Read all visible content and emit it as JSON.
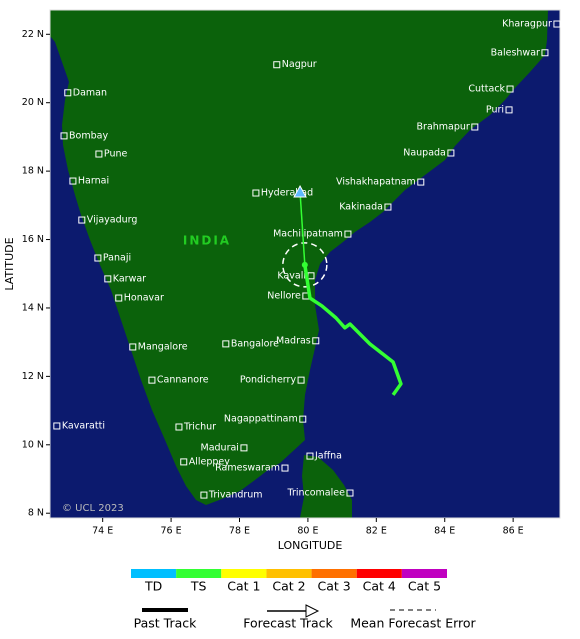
{
  "map": {
    "x_axis_label": "LONGITUDE",
    "y_axis_label": "LATITUDE",
    "region_label": "INDIA",
    "copyright": "© UCL 2023",
    "xlim": [
      72.46,
      87.37
    ],
    "ylim": [
      7.86,
      22.71
    ],
    "xticks": [
      {
        "value": 74,
        "label": "74 E"
      },
      {
        "value": 76,
        "label": "76 E"
      },
      {
        "value": 78,
        "label": "78 E"
      },
      {
        "value": 80,
        "label": "80 E"
      },
      {
        "value": 82,
        "label": "82 E"
      },
      {
        "value": 84,
        "label": "84 E"
      },
      {
        "value": 86,
        "label": "86 E"
      }
    ],
    "yticks": [
      {
        "value": 8,
        "label": "8 N"
      },
      {
        "value": 10,
        "label": "10 N"
      },
      {
        "value": 12,
        "label": "12 N"
      },
      {
        "value": 14,
        "label": "14 N"
      },
      {
        "value": 16,
        "label": "16 N"
      },
      {
        "value": 18,
        "label": "18 N"
      },
      {
        "value": 20,
        "label": "20 N"
      },
      {
        "value": 22,
        "label": "22 N"
      }
    ],
    "cities": [
      {
        "name": "Kharagpur",
        "lon": 87.28,
        "lat": 22.3,
        "label_side": "left"
      },
      {
        "name": "Baleshwar",
        "lon": 86.93,
        "lat": 21.46,
        "label_side": "left"
      },
      {
        "name": "Cuttack",
        "lon": 85.91,
        "lat": 20.4,
        "label_side": "left"
      },
      {
        "name": "Puri",
        "lon": 85.88,
        "lat": 19.79,
        "label_side": "left"
      },
      {
        "name": "Brahmapur",
        "lon": 84.88,
        "lat": 19.29,
        "label_side": "left"
      },
      {
        "name": "Naupada",
        "lon": 84.18,
        "lat": 18.53,
        "label_side": "left"
      },
      {
        "name": "Vishakhapatnam",
        "lon": 83.3,
        "lat": 17.68,
        "label_side": "left"
      },
      {
        "name": "Kakinada",
        "lon": 82.34,
        "lat": 16.95,
        "label_side": "left"
      },
      {
        "name": "Machilipatnam",
        "lon": 81.17,
        "lat": 16.16,
        "label_side": "left"
      },
      {
        "name": "Kavali",
        "lon": 80.09,
        "lat": 14.94,
        "label_side": "left"
      },
      {
        "name": "Nellore",
        "lon": 79.94,
        "lat": 14.35,
        "label_side": "left"
      },
      {
        "name": "Madras",
        "lon": 80.23,
        "lat": 13.04,
        "label_side": "left"
      },
      {
        "name": "Pondicherry",
        "lon": 79.8,
        "lat": 11.89,
        "label_side": "left"
      },
      {
        "name": "Nagappattinam",
        "lon": 79.85,
        "lat": 10.75,
        "label_side": "left"
      },
      {
        "name": "Madurai",
        "lon": 78.13,
        "lat": 9.91,
        "label_side": "left"
      },
      {
        "name": "Rameswaram",
        "lon": 79.33,
        "lat": 9.32,
        "label_side": "left"
      },
      {
        "name": "Trincomalee",
        "lon": 81.23,
        "lat": 8.59,
        "label_side": "left"
      },
      {
        "name": "Jaffna",
        "lon": 80.06,
        "lat": 9.67,
        "label_side": "right"
      },
      {
        "name": "Trivandrum",
        "lon": 76.96,
        "lat": 8.53,
        "label_side": "right"
      },
      {
        "name": "Alleppey",
        "lon": 76.37,
        "lat": 9.5,
        "label_side": "right"
      },
      {
        "name": "Trichur",
        "lon": 76.23,
        "lat": 10.52,
        "label_side": "right"
      },
      {
        "name": "Kavaratti",
        "lon": 72.66,
        "lat": 10.55,
        "label_side": "right"
      },
      {
        "name": "Cannanore",
        "lon": 75.44,
        "lat": 11.89,
        "label_side": "right"
      },
      {
        "name": "Mangalore",
        "lon": 74.88,
        "lat": 12.86,
        "label_side": "right"
      },
      {
        "name": "Bangalore",
        "lon": 77.6,
        "lat": 12.95,
        "label_side": "right"
      },
      {
        "name": "Honavar",
        "lon": 74.47,
        "lat": 14.29,
        "label_side": "right"
      },
      {
        "name": "Karwar",
        "lon": 74.15,
        "lat": 14.85,
        "label_side": "right"
      },
      {
        "name": "Panaji",
        "lon": 73.86,
        "lat": 15.46,
        "label_side": "right"
      },
      {
        "name": "Vijayadurg",
        "lon": 73.39,
        "lat": 16.57,
        "label_side": "right"
      },
      {
        "name": "Harnai",
        "lon": 73.13,
        "lat": 17.71,
        "label_side": "right"
      },
      {
        "name": "Bombay",
        "lon": 72.87,
        "lat": 19.03,
        "label_side": "right"
      },
      {
        "name": "Pune",
        "lon": 73.89,
        "lat": 18.5,
        "label_side": "right"
      },
      {
        "name": "Daman",
        "lon": 72.98,
        "lat": 20.29,
        "label_side": "right"
      },
      {
        "name": "Nagpur",
        "lon": 79.09,
        "lat": 21.11,
        "label_side": "right"
      },
      {
        "name": "Hyderabad",
        "lon": 78.48,
        "lat": 17.36,
        "label_side": "right"
      }
    ],
    "past_track": {
      "color": "#33ff33",
      "lon": [
        82.49,
        82.72,
        82.49,
        81.81,
        81.23,
        81.08,
        80.82,
        80.41,
        80.06,
        79.91
      ],
      "lat": [
        11.46,
        11.78,
        12.42,
        12.95,
        13.53,
        13.42,
        13.71,
        14.06,
        14.29,
        15.26
      ]
    },
    "forecast_track": {
      "color": "#33ff33",
      "lon": [
        79.91,
        79.77
      ],
      "lat": [
        15.26,
        17.39
      ]
    },
    "intensity_scale": [
      {
        "label": "TD",
        "color": "#00bfff"
      },
      {
        "label": "TS",
        "color": "#33ff33"
      },
      {
        "label": "Cat 1",
        "color": "#ffff00"
      },
      {
        "label": "Cat 2",
        "color": "#ffc000"
      },
      {
        "label": "Cat 3",
        "color": "#ff7000"
      },
      {
        "label": "Cat 4",
        "color": "#ff0000"
      },
      {
        "label": "Cat 5",
        "color": "#c000c0"
      }
    ],
    "legend": {
      "past_track": "Past Track",
      "forecast_track": "Forecast Track",
      "mean_forecast_error": "Mean Forecast Error"
    }
  }
}
